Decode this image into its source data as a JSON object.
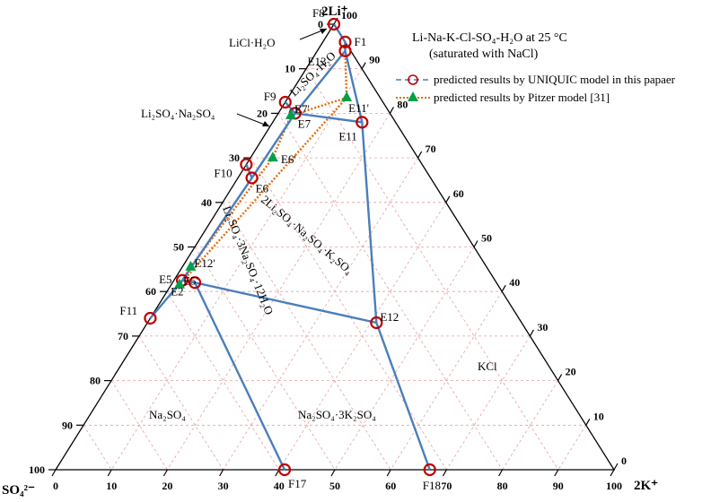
{
  "title": {
    "line1": "Li-Na-K-Cl-SO₄-H₂O at 25 °C",
    "line2": "(saturated with NaCl)"
  },
  "vertices": {
    "top": "2Li⁺",
    "left": "SO₄²⁻",
    "right": "2K⁺"
  },
  "ticks": {
    "left": [
      "0",
      "10",
      "20",
      "30",
      "40",
      "50",
      "60",
      "70",
      "80",
      "90",
      "100"
    ],
    "bottom": [
      "0",
      "10",
      "20",
      "30",
      "40",
      "50",
      "60",
      "70",
      "80",
      "90",
      "100"
    ],
    "right": [
      "100",
      "90",
      "80",
      "70",
      "60",
      "50",
      "40",
      "30",
      "20",
      "10",
      "0"
    ]
  },
  "legend": {
    "uniquic": "predicted results by UNIQUIC model in this papaer",
    "pitzer": "predicted results by Pitzer model [31]"
  },
  "colors": {
    "uniquic_line": "#4a7ebb",
    "uniquic_marker": "#c00000",
    "pitzer_line": "#e46c0a",
    "pitzer_marker": "#00a04a",
    "grid": "#e5a0a0"
  },
  "points": {
    "F8": {
      "label": "F8",
      "so4": 0,
      "k": 0
    },
    "F1": {
      "label": "F1",
      "so4": 0,
      "k": 4
    },
    "E13": {
      "label": "E13",
      "so4": 1,
      "k": 5
    },
    "E11": {
      "label": "E11",
      "so4": 6,
      "k": 16
    },
    "F9": {
      "label": "F9",
      "so4": 17.5,
      "k": 0
    },
    "E7": {
      "label": "E7",
      "so4": 17,
      "k": 3
    },
    "F10": {
      "label": "F10",
      "so4": 31.5,
      "k": 0
    },
    "E6": {
      "label": "E6",
      "so4": 32,
      "k": 2.5
    },
    "F11": {
      "label": "F11",
      "so4": 66,
      "k": 0
    },
    "E12": {
      "label": "E12",
      "so4": 26,
      "k": 41
    },
    "E5": {
      "label": "E5",
      "so4": 56,
      "k": 1.5
    },
    "E2": {
      "label": "E2",
      "so4": 54,
      "k": 4
    },
    "F17": {
      "label": "F17",
      "so4": 59,
      "k": 41
    },
    "F18": {
      "label": "F18",
      "so4": 33,
      "k": 67
    }
  },
  "pitzer_points": {
    "E11p": {
      "label": "E11'",
      "so4": 6,
      "k": 10.5
    },
    "E7p": {
      "label": "E7'",
      "so4": 18,
      "k": 2.5
    },
    "E6p": {
      "label": "E6'",
      "so4": 26,
      "k": 4
    },
    "E12p": {
      "label": "E12'",
      "so4": 53,
      "k": 1.5
    },
    "E5p": {
      "label": "E5'",
      "so4": 57,
      "k": 1.5
    }
  },
  "uniquic_lines": [
    [
      "F8",
      "F1",
      "E13",
      "E11",
      "E12",
      "F18"
    ],
    [
      "E13",
      "E7",
      "E11"
    ],
    [
      "F9",
      "E7",
      "E6",
      "F10"
    ],
    [
      "E6",
      "E5",
      "E2",
      "E12"
    ],
    [
      "F11",
      "E5"
    ],
    [
      "E2",
      "F17"
    ]
  ],
  "pitzer_lines": [
    [
      "E13",
      "E11p",
      "E7p",
      "E6p",
      "E12p",
      "E5p"
    ],
    [
      "E11p",
      "E5p"
    ]
  ],
  "regions": {
    "licl": "LiCl·H₂O",
    "li2so4_h2o": "Li₂SO₄·H₂O",
    "li2so4_na2so4": "Li₂SO₄·Na₂SO₄",
    "double": "2Li₂SO₄·Na₂SO₄·K₂SO₄",
    "hydrate": "Li₂SO₄·3Na₂SO₄·12H₂O",
    "na2so4": "Na₂SO₄",
    "glaserite": "Na₂SO₄·3K₂SO₄",
    "kcl": "KCl"
  }
}
